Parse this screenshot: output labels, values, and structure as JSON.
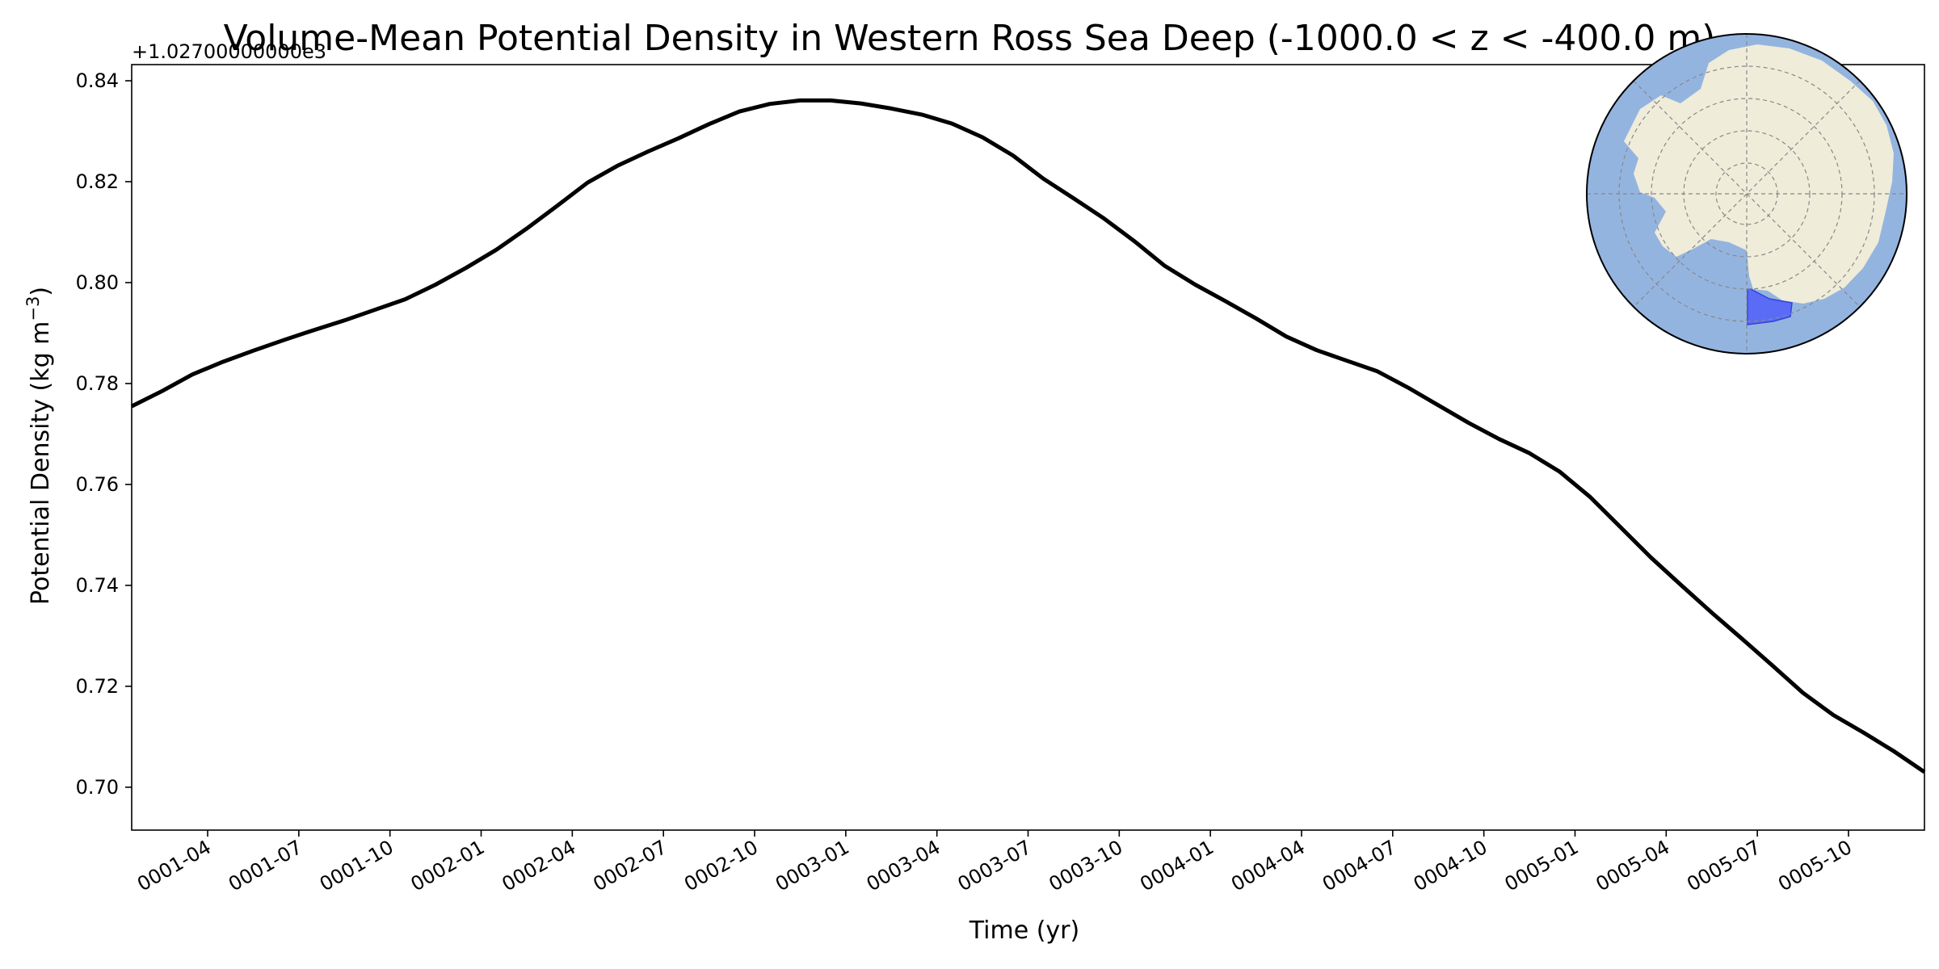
{
  "chart_data": {
    "type": "line",
    "title": "Volume-Mean Potential Density in Western Ross Sea Deep (-1000.0 < z < -400.0 m)",
    "xlabel": "Time (yr)",
    "ylabel": "Potential Density (kg m",
    "ylabel_sup": "−3",
    "ylabel_end": ")",
    "offset_text": "+1.02700000000e3",
    "y_ticks": [
      0.7,
      0.72,
      0.74,
      0.76,
      0.78,
      0.8,
      0.82,
      0.84
    ],
    "y_tick_labels": [
      "0.70",
      "0.72",
      "0.74",
      "0.76",
      "0.78",
      "0.80",
      "0.82",
      "0.84"
    ],
    "ylim": [
      0.6915,
      0.8432
    ],
    "x_ticks": [
      3,
      6,
      9,
      12,
      15,
      18,
      21,
      24,
      27,
      30,
      33,
      36,
      39,
      42,
      45,
      48,
      51,
      54,
      57
    ],
    "x_tick_labels": [
      "0001-04",
      "0001-07",
      "0001-10",
      "0002-01",
      "0002-04",
      "0002-07",
      "0002-10",
      "0003-01",
      "0003-04",
      "0003-07",
      "0003-10",
      "0004-01",
      "0004-04",
      "0004-07",
      "0004-10",
      "0005-01",
      "0005-04",
      "0005-07",
      "0005-10"
    ],
    "xlim": [
      0.5,
      59.5
    ],
    "line_color": "#000000",
    "series": [
      {
        "x": [
          0.5,
          1.5,
          2.5,
          3.5,
          4.5,
          5.5,
          6.5,
          7.5,
          8.5,
          9.5,
          10.5,
          11.5,
          12.5,
          13.5,
          14.5,
          15.5,
          16.5,
          17.5,
          18.5,
          19.5,
          20.5,
          21.5,
          22.5,
          23.5,
          24.5,
          25.5,
          26.5,
          27.5,
          28.5,
          29.5,
          30.5,
          31.5,
          32.5,
          33.5,
          34.5,
          35.5,
          36.5,
          37.5,
          38.5,
          39.5,
          40.5,
          41.5,
          42.5,
          43.5,
          44.5,
          45.5,
          46.5,
          47.5,
          48.5,
          49.5,
          50.5,
          51.5,
          52.5,
          53.5,
          54.5,
          55.5,
          56.5,
          57.5,
          58.5,
          59.5
        ],
        "values": [
          0.7755,
          0.7785,
          0.7818,
          0.7843,
          0.7865,
          0.7886,
          0.7906,
          0.7925,
          0.7946,
          0.7967,
          0.7996,
          0.8029,
          0.8065,
          0.8107,
          0.8152,
          0.8198,
          0.8232,
          0.826,
          0.8286,
          0.8314,
          0.8339,
          0.8354,
          0.8361,
          0.8361,
          0.8355,
          0.8345,
          0.8333,
          0.8315,
          0.8288,
          0.8252,
          0.8206,
          0.8167,
          0.8127,
          0.8082,
          0.8033,
          0.7996,
          0.7963,
          0.7929,
          0.7893,
          0.7866,
          0.7845,
          0.7824,
          0.7792,
          0.7757,
          0.7722,
          0.769,
          0.7662,
          0.7625,
          0.7575,
          0.7515,
          0.7455,
          0.74,
          0.7346,
          0.7294,
          0.7241,
          0.7187,
          0.7143,
          0.7108,
          0.7071,
          0.703
        ]
      }
    ]
  },
  "inset_map": {
    "ocean_color": "#94b4e0",
    "land_color": "#efecda",
    "region_color": "#5a6cf5",
    "grid_color": "#888888",
    "border_color": "#000000"
  }
}
